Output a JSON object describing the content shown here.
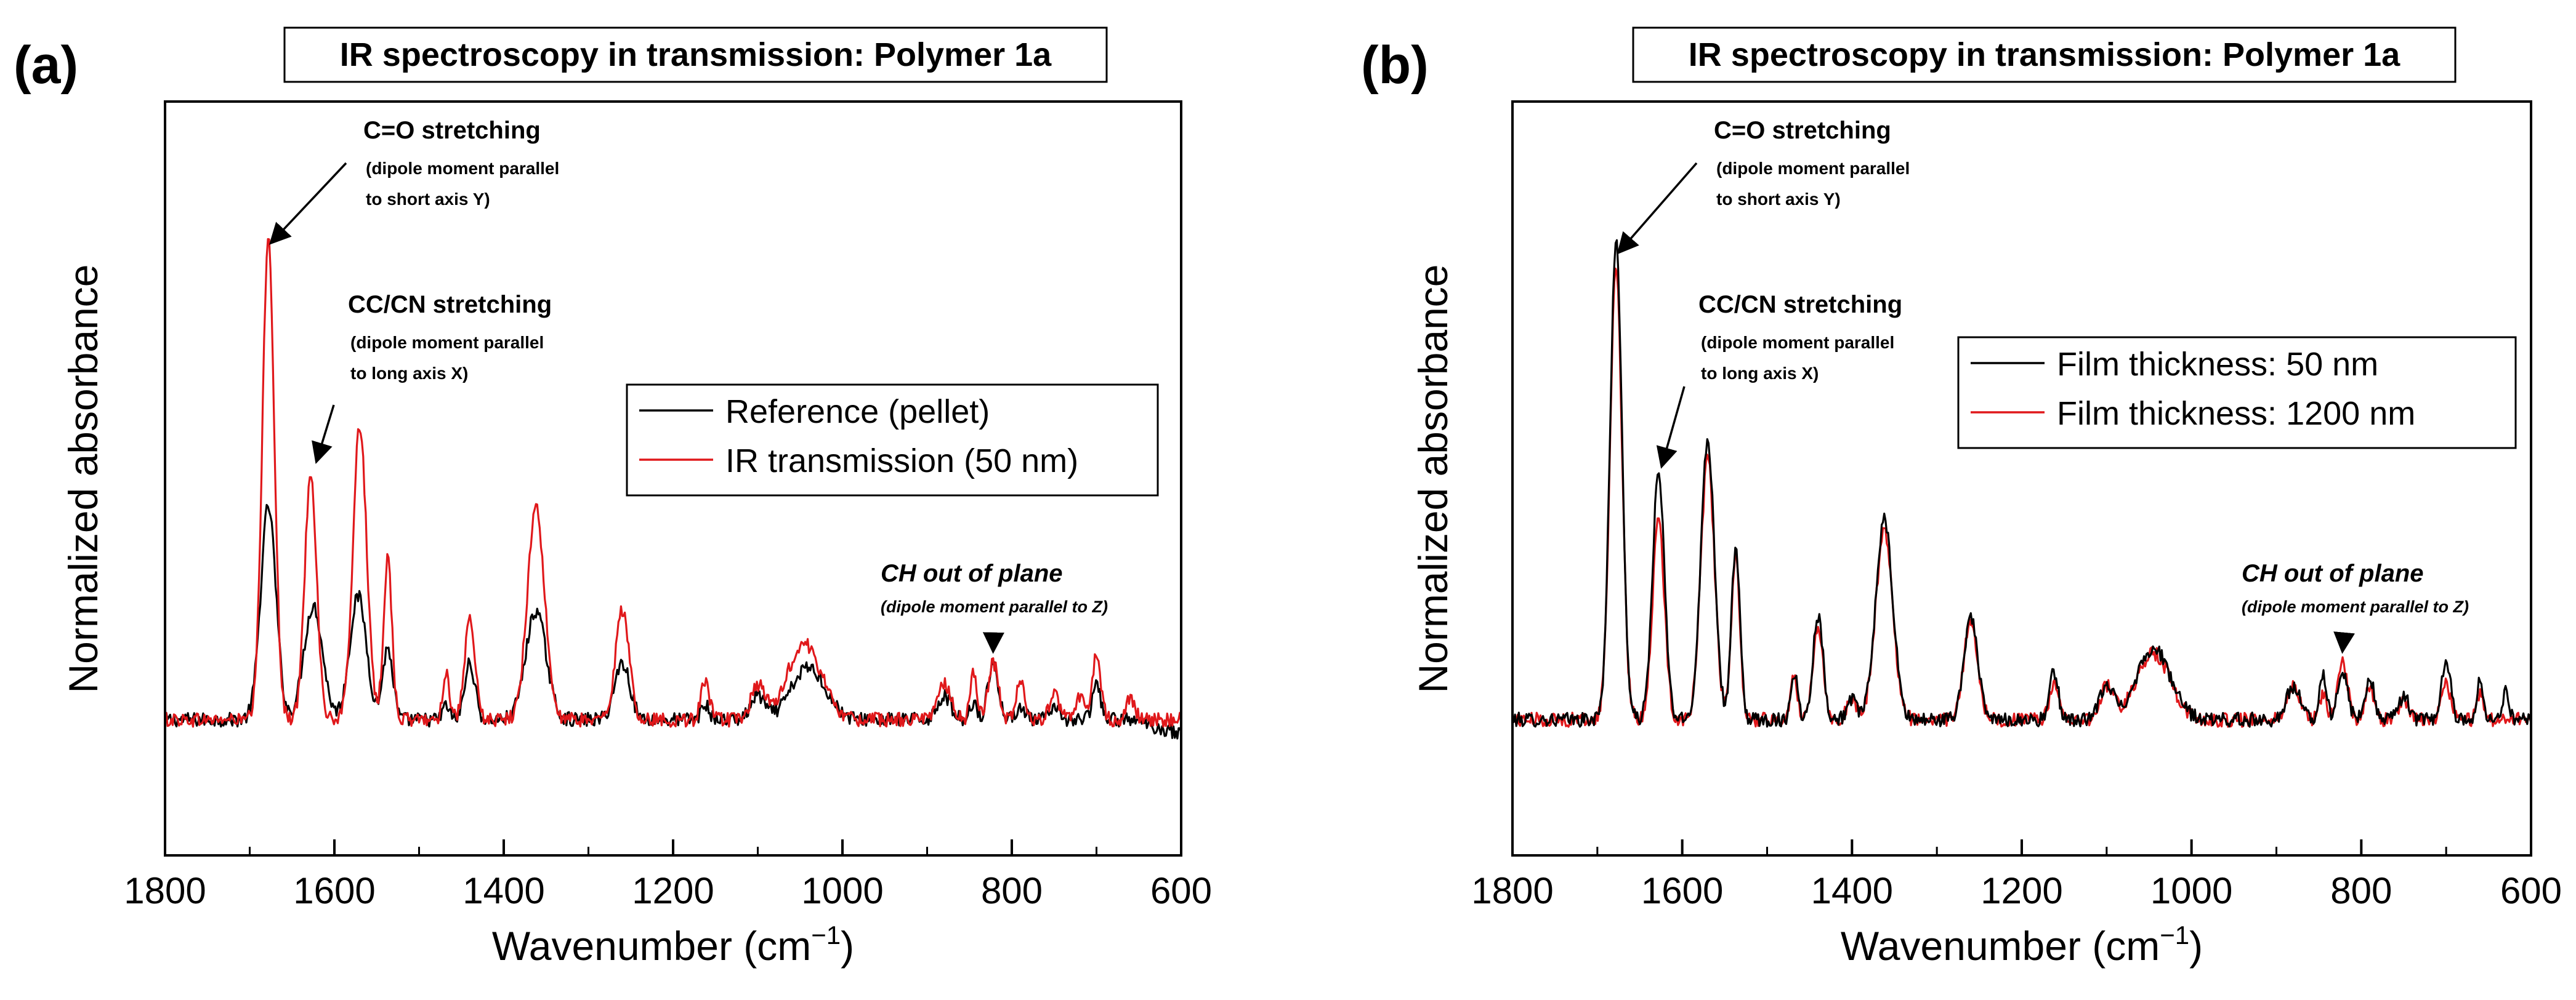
{
  "colors": {
    "reference": "#000000",
    "transmission": "#e0181b",
    "frame": "#000000"
  },
  "chart_data": [
    {
      "type": "line",
      "panel_label": "(a)",
      "title": "IR spectroscopy in transmission: Polymer 1a",
      "xlabel": "Wavenumber (cm",
      "xlabel_sup": "−1",
      "xlabel_close": ")",
      "ylabel": "Normalized absorbance",
      "xlim": [
        1800,
        600
      ],
      "ylim": [
        0,
        1.25
      ],
      "xticks": [
        1800,
        1600,
        1400,
        1200,
        1000,
        800,
        600
      ],
      "legend_position": "center-right",
      "series": [
        {
          "name": "Reference (pellet)",
          "color": "#000000",
          "peaks": [
            [
              1678,
              0.45,
              9
            ],
            [
              1625,
              0.24,
              11
            ],
            [
              1572,
              0.26,
              10
            ],
            [
              1537,
              0.15,
              6
            ],
            [
              1468,
              0.03,
              4
            ],
            [
              1440,
              0.12,
              6
            ],
            [
              1362,
              0.23,
              12
            ],
            [
              1260,
              0.12,
              9
            ],
            [
              1162,
              0.03,
              5
            ],
            [
              1100,
              0.05,
              8
            ],
            [
              1040,
              0.11,
              20
            ],
            [
              880,
              0.05,
              8
            ],
            [
              845,
              0.04,
              4
            ],
            [
              822,
              0.12,
              6
            ],
            [
              790,
              0.03,
              5
            ],
            [
              750,
              0.02,
              6
            ],
            [
              700,
              0.07,
              5
            ]
          ],
          "tail": [
            [
              660,
              0.0
            ],
            [
              640,
              -0.01
            ],
            [
              600,
              -0.03
            ]
          ]
        },
        {
          "name": "IR transmission (50 nm)",
          "color": "#e0181b",
          "peaks": [
            [
              1678,
              1.02,
              7
            ],
            [
              1628,
              0.52,
              7
            ],
            [
              1570,
              0.62,
              8
            ],
            [
              1537,
              0.34,
              5
            ],
            [
              1468,
              0.1,
              4
            ],
            [
              1440,
              0.21,
              6
            ],
            [
              1362,
              0.45,
              10
            ],
            [
              1260,
              0.23,
              8
            ],
            [
              1162,
              0.08,
              5
            ],
            [
              1100,
              0.07,
              8
            ],
            [
              1045,
              0.16,
              20
            ],
            [
              880,
              0.08,
              8
            ],
            [
              845,
              0.1,
              4
            ],
            [
              822,
              0.12,
              6
            ],
            [
              790,
              0.08,
              5
            ],
            [
              750,
              0.05,
              6
            ],
            [
              720,
              0.05,
              5
            ],
            [
              700,
              0.14,
              5
            ],
            [
              660,
              0.05,
              5
            ]
          ],
          "tail": []
        }
      ],
      "annotations": [
        {
          "id": "co",
          "lines": [
            "C=O stretching",
            "(dipole moment parallel",
            "to short axis Y)"
          ],
          "arrow_target": [
            1678,
            1.0
          ]
        },
        {
          "id": "cc",
          "lines": [
            "CC/CN stretching",
            "(dipole moment parallel",
            "to long axis X)"
          ],
          "arrow_target": [
            1625,
            0.54
          ]
        },
        {
          "id": "ch",
          "lines": [
            "CH out of plane",
            "(dipole moment parallel to Z)"
          ],
          "arrow_target": [
            822,
            0.14
          ]
        }
      ]
    },
    {
      "type": "line",
      "panel_label": "(b)",
      "title": "IR spectroscopy in transmission: Polymer 1a",
      "xlabel": "Wavenumber (cm",
      "xlabel_sup": "−1",
      "xlabel_close": ")",
      "ylabel": "Normalized absorbance",
      "xlim": [
        1800,
        600
      ],
      "ylim": [
        0,
        1.25
      ],
      "xticks": [
        1800,
        1600,
        1400,
        1200,
        1000,
        800,
        600
      ],
      "legend_position": "center-right",
      "series": [
        {
          "name": "Film thickness: 50 nm",
          "color": "#000000",
          "peaks": [
            [
              1678,
              1.01,
              7
            ],
            [
              1628,
              0.52,
              7
            ],
            [
              1570,
              0.59,
              8
            ],
            [
              1537,
              0.36,
              5
            ],
            [
              1468,
              0.1,
              4
            ],
            [
              1440,
              0.22,
              6
            ],
            [
              1400,
              0.04,
              6
            ],
            [
              1362,
              0.42,
              10
            ],
            [
              1260,
              0.22,
              8
            ],
            [
              1162,
              0.1,
              5
            ],
            [
              1100,
              0.07,
              8
            ],
            [
              1045,
              0.15,
              20
            ],
            [
              880,
              0.07,
              8
            ],
            [
              845,
              0.1,
              4
            ],
            [
              822,
              0.1,
              6
            ],
            [
              790,
              0.09,
              5
            ],
            [
              750,
              0.05,
              6
            ],
            [
              700,
              0.13,
              5
            ],
            [
              660,
              0.08,
              4
            ],
            [
              630,
              0.06,
              4
            ]
          ],
          "tail": []
        },
        {
          "name": "Film thickness: 1200 nm",
          "color": "#e0181b",
          "peaks": [
            [
              1678,
              0.96,
              7
            ],
            [
              1628,
              0.42,
              7
            ],
            [
              1570,
              0.55,
              8
            ],
            [
              1537,
              0.34,
              5
            ],
            [
              1468,
              0.09,
              4
            ],
            [
              1440,
              0.2,
              6
            ],
            [
              1400,
              0.04,
              6
            ],
            [
              1362,
              0.4,
              10
            ],
            [
              1260,
              0.21,
              8
            ],
            [
              1162,
              0.08,
              5
            ],
            [
              1100,
              0.07,
              8
            ],
            [
              1045,
              0.14,
              20
            ],
            [
              880,
              0.07,
              8
            ],
            [
              845,
              0.05,
              4
            ],
            [
              822,
              0.12,
              6
            ],
            [
              790,
              0.07,
              5
            ],
            [
              750,
              0.04,
              6
            ],
            [
              700,
              0.08,
              5
            ],
            [
              660,
              0.05,
              4
            ]
          ],
          "tail": []
        }
      ],
      "annotations": [
        {
          "id": "co",
          "lines": [
            "C=O stretching",
            "(dipole moment parallel",
            "to short axis Y)"
          ],
          "arrow_target": [
            1678,
            0.98
          ]
        },
        {
          "id": "cc",
          "lines": [
            "CC/CN stretching",
            "(dipole moment parallel",
            "to long axis X)"
          ],
          "arrow_target": [
            1628,
            0.53
          ]
        },
        {
          "id": "ch",
          "lines": [
            "CH out of plane",
            "(dipole moment parallel to Z)"
          ],
          "arrow_target": [
            822,
            0.14
          ]
        }
      ]
    }
  ]
}
